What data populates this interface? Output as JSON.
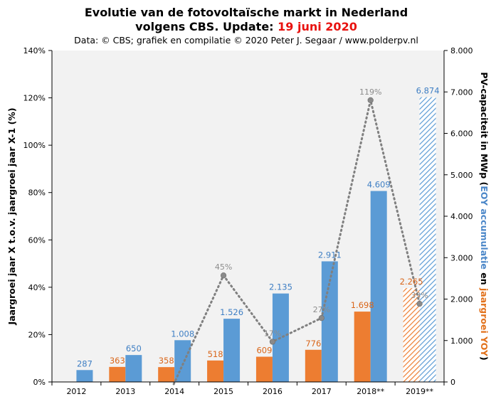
{
  "chart_data": {
    "type": "bar",
    "title_line1": "Evolutie  van de fotovoltaïsche  markt in Nederland",
    "title_line2_prefix": "volgens CBS. Update: ",
    "title_line2_date": "19 juni 2020",
    "subtitle": "Data: © CBS; grafiek en compilatie © 2020 Peter J. Segaar / www.polderpv.nl",
    "categories": [
      "2012",
      "2013",
      "2014",
      "2015",
      "2016",
      "2017",
      "2018**",
      "2019**"
    ],
    "series": [
      {
        "name": "jaargroei YOY",
        "axis": "right",
        "color": "#ed7d31",
        "values": [
          null,
          363,
          358,
          518,
          609,
          776,
          1698,
          2265
        ],
        "labels": [
          "",
          "363",
          "358",
          "518",
          "609",
          "776",
          "1.698",
          "2.265"
        ],
        "provisional_hatched": [
          false,
          false,
          false,
          false,
          false,
          false,
          false,
          true
        ]
      },
      {
        "name": "EOY accumulatie",
        "axis": "right",
        "color": "#5b9bd5",
        "values": [
          287,
          650,
          1008,
          1526,
          2135,
          2911,
          4609,
          6874
        ],
        "labels": [
          "287",
          "650",
          "1.008",
          "1.526",
          "2.135",
          "2.911",
          "4.609",
          "6.874"
        ],
        "provisional_hatched": [
          false,
          false,
          false,
          false,
          false,
          false,
          false,
          true
        ]
      },
      {
        "name": "Jaargroei jaar X t.o.v. jaargroei jaar X-1 (%)",
        "axis": "left",
        "type": "line",
        "style": "dotted",
        "color": "#808080",
        "values": [
          null,
          null,
          -1,
          45,
          17,
          27,
          119,
          33
        ],
        "labels": [
          "",
          "",
          "",
          "45%",
          "17%",
          "27%",
          "119%",
          "33%"
        ]
      }
    ],
    "left_axis": {
      "label": "Jaargroei jaar X t.o.v.  jaargroei jaar X-1 (%)",
      "ylim": [
        0,
        140
      ],
      "ticks": [
        "0%",
        "20%",
        "40%",
        "60%",
        "80%",
        "100%",
        "120%",
        "140%"
      ]
    },
    "right_axis": {
      "label_prefix": "PV-capaciteit in MWp (",
      "label_blue": "EOY accumulatie",
      "label_mid": " en ",
      "label_orange": "jaargroei YOY",
      "label_suffix": ")",
      "ylim": [
        0,
        8000
      ],
      "ticks": [
        "0",
        "1.000",
        "2.000",
        "3.000",
        "4.000",
        "5.000",
        "6.000",
        "7.000",
        "8.000"
      ]
    },
    "grid": false,
    "colors": {
      "plot_background": "#f2f2f2",
      "orange": "#ed7d31",
      "blue": "#5b9bd5",
      "line": "#808080",
      "date": "#e8120f"
    }
  }
}
